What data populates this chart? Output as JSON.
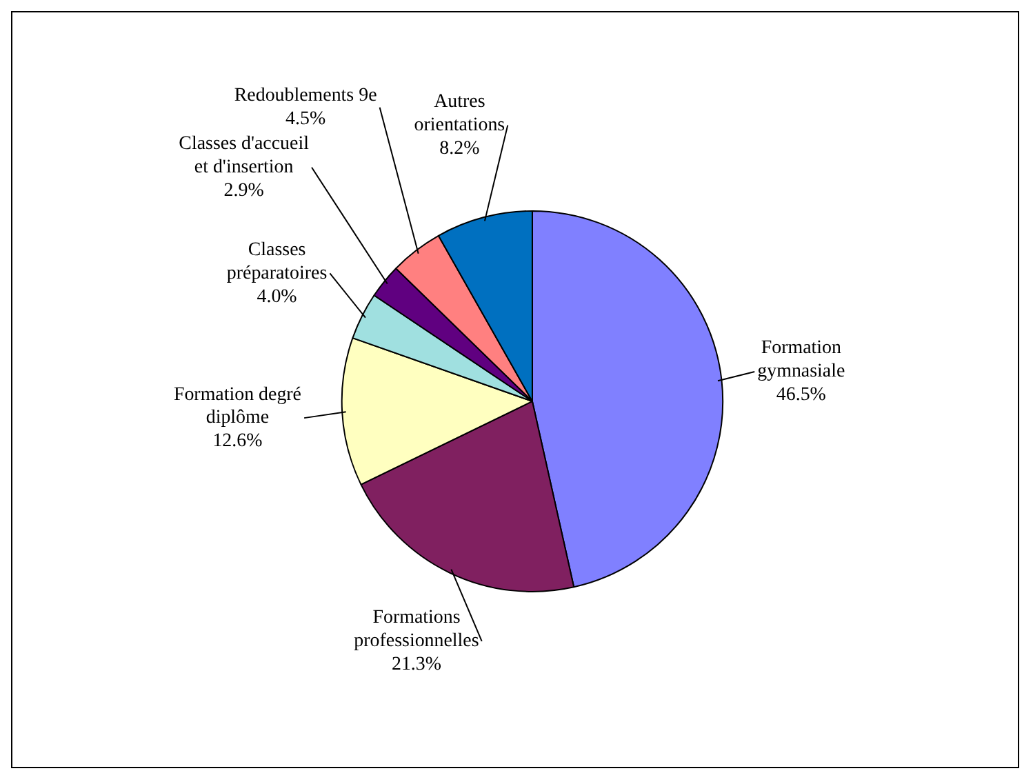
{
  "chart_data": {
    "type": "pie",
    "categories": [
      "Formation gymnasiale",
      "Formations professionnelles",
      "Formation degré diplôme",
      "Classes préparatoires",
      "Classes d'accueil et d'insertion",
      "Redoublements 9e",
      "Autres orientations"
    ],
    "values": [
      46.5,
      21.3,
      12.6,
      4.0,
      2.9,
      4.5,
      8.2
    ],
    "colors": [
      "#8080ff",
      "#802060",
      "#ffffc0",
      "#a0e0e0",
      "#600080",
      "#ff8080",
      "#0070c0"
    ],
    "value_labels": [
      "46.5%",
      "21.3%",
      "12.6%",
      "4.0%",
      "2.9%",
      "4.5%",
      "8.2%"
    ],
    "legend": false
  }
}
